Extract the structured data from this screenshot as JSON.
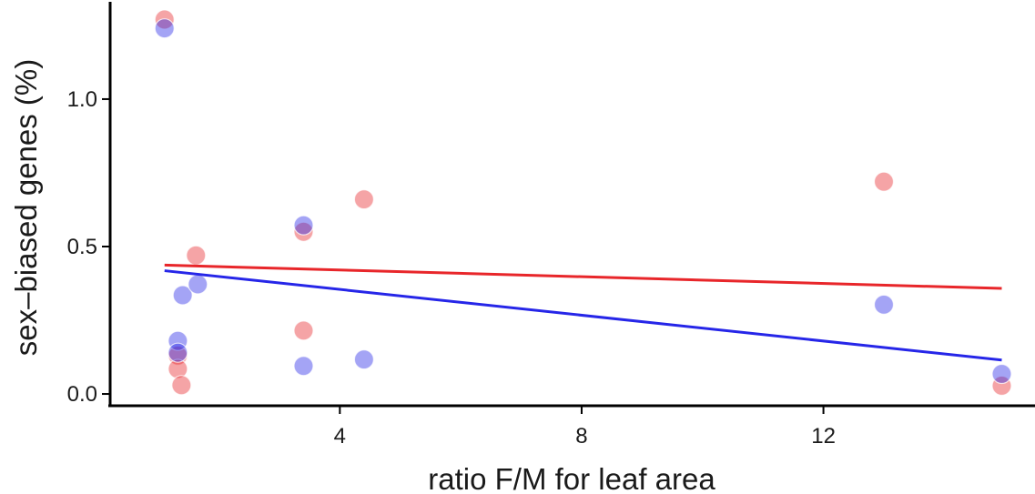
{
  "chart_data": {
    "type": "scatter",
    "title": "",
    "xlabel": "ratio F/M for leaf area",
    "ylabel": "sex–biased genes (%)",
    "xlim": [
      0.2,
      15.5
    ],
    "ylim": [
      -0.04,
      1.33
    ],
    "x_ticks": [
      4,
      8,
      12
    ],
    "x_tick_labels": [
      "4",
      "8",
      "12"
    ],
    "y_ticks": [
      0.0,
      0.5,
      1.0
    ],
    "y_tick_labels": [
      "0.0",
      "0.5",
      "1.0"
    ],
    "grid": false,
    "legend": "none",
    "series": [
      {
        "color": "#e8262a",
        "points": [
          {
            "x": 1.1,
            "y": 1.27
          },
          {
            "x": 1.62,
            "y": 0.47
          },
          {
            "x": 1.32,
            "y": 0.13
          },
          {
            "x": 1.32,
            "y": 0.085
          },
          {
            "x": 1.38,
            "y": 0.03
          },
          {
            "x": 3.4,
            "y": 0.55
          },
          {
            "x": 3.4,
            "y": 0.215
          },
          {
            "x": 4.4,
            "y": 0.66
          },
          {
            "x": 13.0,
            "y": 0.72
          },
          {
            "x": 14.95,
            "y": 0.028
          }
        ],
        "trend": {
          "x": [
            1.1,
            14.95
          ],
          "y": [
            0.437,
            0.358
          ]
        }
      },
      {
        "color": "#2626e8",
        "points": [
          {
            "x": 1.1,
            "y": 1.24
          },
          {
            "x": 1.32,
            "y": 0.18
          },
          {
            "x": 1.32,
            "y": 0.14
          },
          {
            "x": 1.4,
            "y": 0.335
          },
          {
            "x": 1.65,
            "y": 0.372
          },
          {
            "x": 3.4,
            "y": 0.572
          },
          {
            "x": 3.4,
            "y": 0.095
          },
          {
            "x": 4.4,
            "y": 0.117
          },
          {
            "x": 13.0,
            "y": 0.303
          },
          {
            "x": 14.95,
            "y": 0.068
          }
        ],
        "trend": {
          "x": [
            1.1,
            14.95
          ],
          "y": [
            0.418,
            0.115
          ]
        }
      }
    ]
  }
}
